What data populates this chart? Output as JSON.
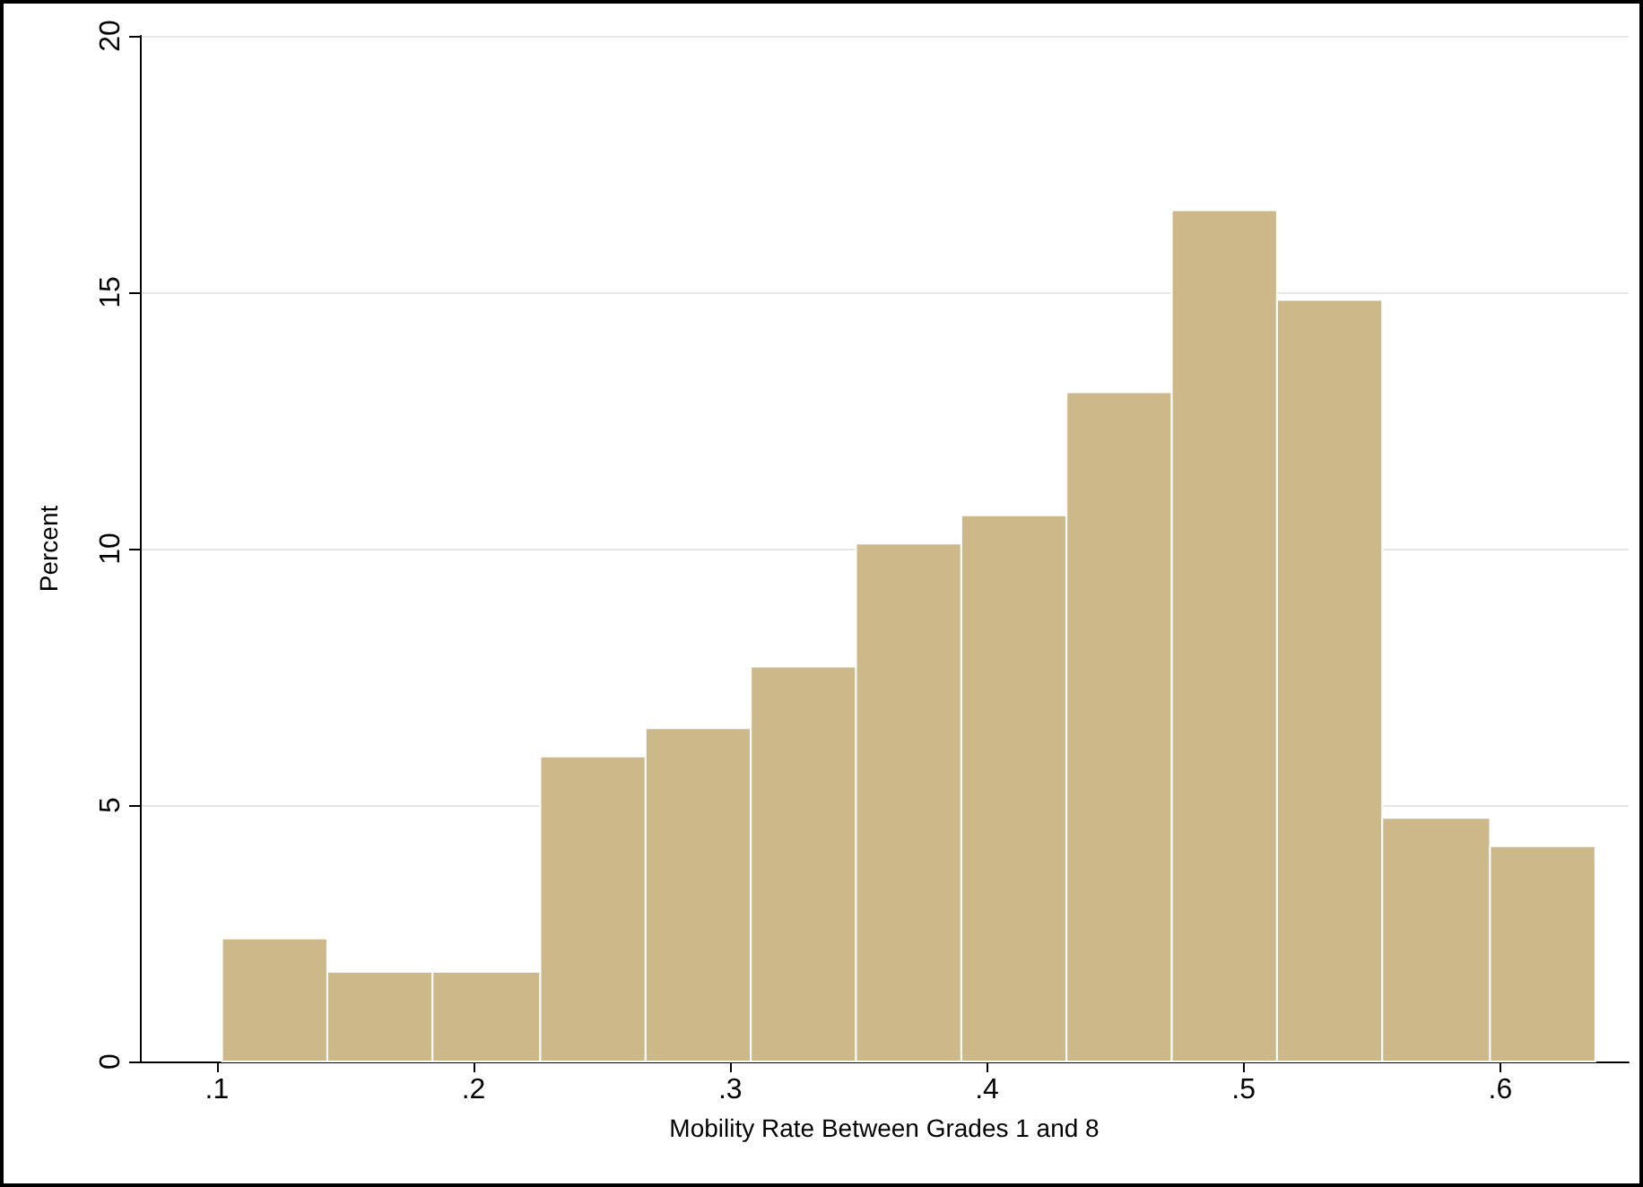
{
  "chart_data": {
    "type": "histogram",
    "xlabel": "Mobility Rate Between Grades 1 and 8",
    "ylabel": "Percent",
    "bins": [
      0.102,
      0.143,
      0.184,
      0.226,
      0.267,
      0.308,
      0.349,
      0.39,
      0.431,
      0.472,
      0.513,
      0.554,
      0.596,
      0.637
    ],
    "values": [
      2.4,
      1.75,
      1.75,
      5.95,
      6.5,
      7.7,
      10.1,
      10.65,
      13.05,
      16.6,
      14.85,
      4.75,
      4.2
    ],
    "color": "#cdb88a",
    "xlim": [
      0.07,
      0.65
    ],
    "xticks": [
      {
        "value": 0.1,
        "label": ".1"
      },
      {
        "value": 0.2,
        "label": ".2"
      },
      {
        "value": 0.3,
        "label": ".3"
      },
      {
        "value": 0.4,
        "label": ".4"
      },
      {
        "value": 0.5,
        "label": ".5"
      },
      {
        "value": 0.6,
        "label": ".6"
      }
    ],
    "ylim": [
      0,
      20
    ],
    "yticks": [
      0,
      5,
      10,
      15,
      20
    ],
    "grid": "y"
  }
}
